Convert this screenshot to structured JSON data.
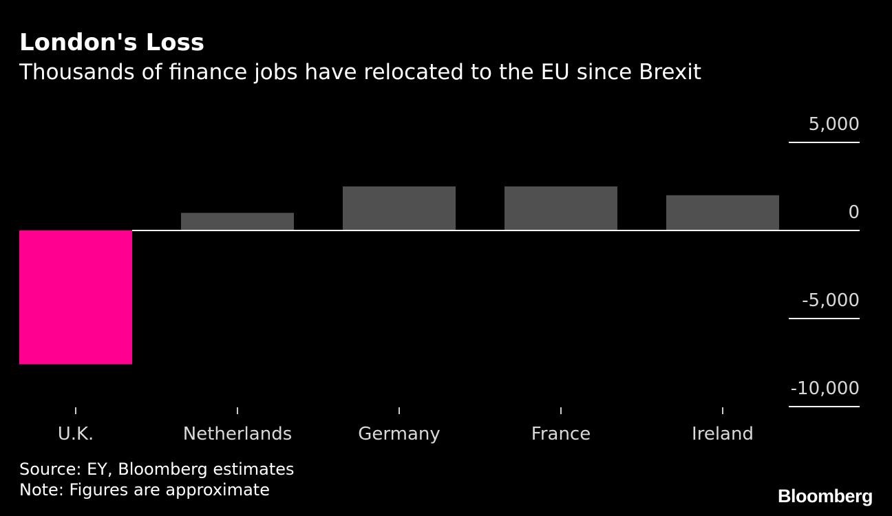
{
  "chart_data": {
    "type": "bar",
    "title": "London's Loss",
    "subtitle": "Thousands of finance jobs have relocated to the EU since Brexit",
    "categories": [
      "U.K.",
      "Netherlands",
      "Germany",
      "France",
      "Ireland"
    ],
    "values": [
      -7600,
      1000,
      2500,
      2500,
      2000
    ],
    "xlabel": "",
    "ylabel": "",
    "ylim": [
      -10000,
      5000
    ],
    "yticks": [
      5000,
      0,
      -5000,
      -10000
    ],
    "ytick_labels": [
      "5,000",
      "0",
      "-5,000",
      "-10,000"
    ],
    "grid": false,
    "legend": "none"
  },
  "colors": {
    "background": "#000000",
    "highlight_bar": "#ff0090",
    "bar": "#505050",
    "axis": "#ffffff",
    "text": "#ffffff"
  },
  "footer": {
    "source": "Source: EY, Bloomberg estimates",
    "note": "Note: Figures are approximate"
  },
  "brand": {
    "logo": "Bloomberg"
  }
}
